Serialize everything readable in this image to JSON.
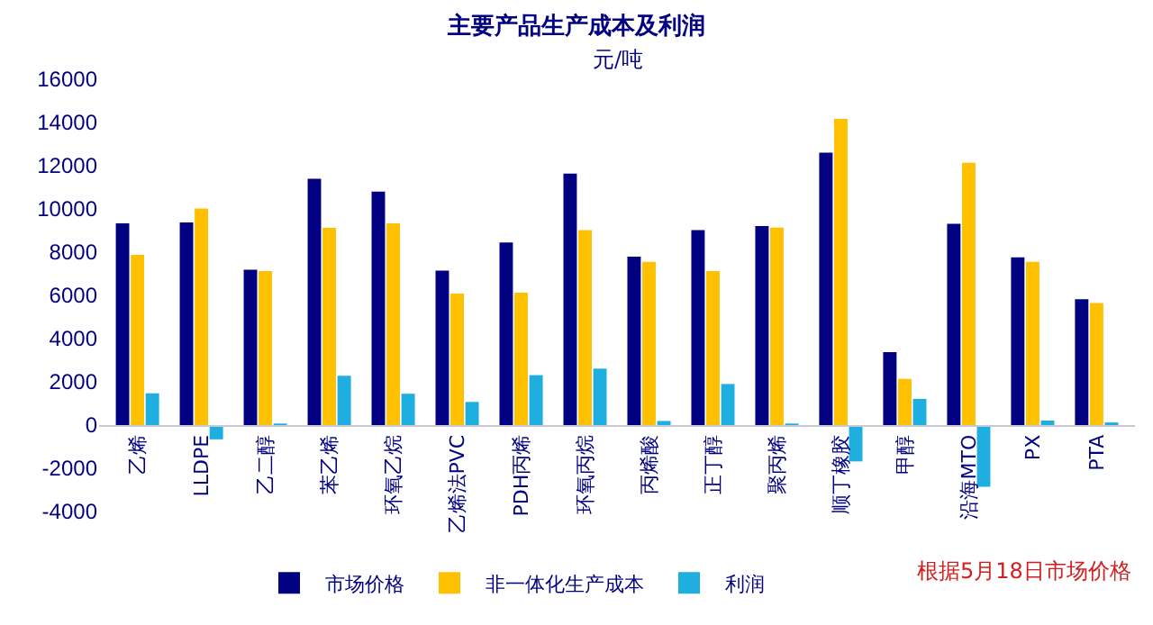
{
  "chart_data": {
    "type": "bar",
    "title": "主要产品生产成本及利润",
    "subtitle": "元/吨",
    "categories": [
      "乙烯",
      "LLDPE",
      "乙二醇",
      "苯乙烯",
      "环氧乙烷",
      "乙烯法PVC",
      "PDH丙烯",
      "环氧丙烷",
      "丙烯酸",
      "正丁醇",
      "聚丙烯",
      "顺丁橡胶",
      "甲醇",
      "沿海MTO",
      "PX",
      "PTA"
    ],
    "series": [
      {
        "name": "市场价格",
        "color": "#000080",
        "values": [
          9330,
          9380,
          7190,
          11400,
          10800,
          7150,
          8450,
          11640,
          7790,
          9020,
          9210,
          12600,
          3380,
          9310,
          7760,
          5820
        ]
      },
      {
        "name": "非一体化生产成本",
        "color": "#ffc000",
        "values": [
          7880,
          10020,
          7120,
          9120,
          9330,
          6080,
          6130,
          9020,
          7550,
          7120,
          9140,
          14170,
          2140,
          12140,
          7550,
          5650
        ]
      },
      {
        "name": "利润",
        "color": "#1eaee0",
        "values": [
          1470,
          -660,
          70,
          2280,
          1450,
          1070,
          2310,
          2610,
          190,
          1900,
          70,
          -1680,
          1210,
          -2850,
          210,
          120
        ]
      }
    ],
    "ylim": [
      -4000,
      16000
    ],
    "yticks": [
      -4000,
      -2000,
      0,
      2000,
      4000,
      6000,
      8000,
      10000,
      12000,
      14000,
      16000
    ],
    "grid": false,
    "legend": "bottom",
    "annotations": [
      "根据5月18日市场价格"
    ]
  }
}
